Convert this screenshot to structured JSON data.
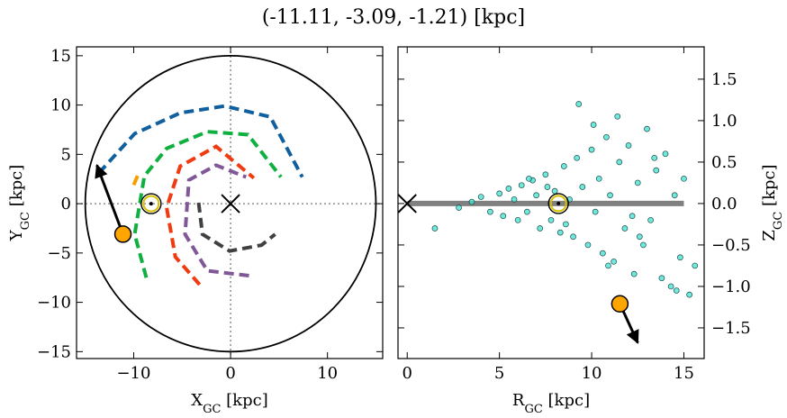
{
  "title": "(-11.11, -3.09, -1.21) [kpc]",
  "chart_data": [
    {
      "type": "line",
      "xlabel": [
        "X",
        "GC",
        " [kpc]"
      ],
      "ylabel": [
        "Y",
        "GC",
        " [kpc]"
      ],
      "xlim": [
        -15.9,
        15.7
      ],
      "ylim": [
        -15.7,
        15.9
      ],
      "xticks": [
        {
          "value": -10,
          "label": "−10"
        },
        0,
        10
      ],
      "yticks": [
        {
          "value": -15,
          "label": "−15"
        },
        {
          "value": -10,
          "label": "−10"
        },
        {
          "value": -5,
          "label": "−5"
        },
        0,
        5,
        10,
        15
      ],
      "circle_radius": 15,
      "series": [
        {
          "color": "#1060a0",
          "x": [
            -13.6,
            -9.9,
            -5.2,
            -0.6,
            4.1,
            7.4
          ],
          "y": [
            3.1,
            7.1,
            9.2,
            9.9,
            8.8,
            2.7
          ]
        },
        {
          "color": "#10b040",
          "x": [
            -8.7,
            -9.9,
            -8.9,
            -6.6,
            -2.4,
            1.8,
            5.2
          ],
          "y": [
            -7.5,
            -3.1,
            2.8,
            5.6,
            7.3,
            7.0,
            2.7
          ]
        },
        {
          "color": "#f5a000",
          "x": [
            -10.0,
            -9.4
          ],
          "y": [
            1.9,
            3.3
          ]
        },
        {
          "color": "#f03a10",
          "x": [
            -3.2,
            -5.7,
            -6.6,
            -5.2,
            -1.5,
            2.4
          ],
          "y": [
            -8.2,
            -5.4,
            -0.4,
            3.8,
            5.8,
            2.6
          ]
        },
        {
          "color": "#805898",
          "x": [
            1.9,
            -2.4,
            -4.7,
            -4.3,
            -1.5,
            1.6
          ],
          "y": [
            -7.3,
            -6.8,
            -3.1,
            2.4,
            3.9,
            2.7
          ]
        },
        {
          "color": "#404040",
          "x": [
            -3.3,
            -2.9,
            -0.1,
            3.2,
            4.6
          ],
          "y": [
            0.1,
            -3.1,
            -4.8,
            -4.2,
            -3.1
          ]
        }
      ],
      "center": {
        "x": 0,
        "y": 0
      },
      "sun": {
        "x": -8.2,
        "y": 0
      },
      "target": {
        "x": -11.11,
        "y": -3.09,
        "color": "#ffa500"
      },
      "arrow": {
        "x": [
          -11.11,
          -13.8
        ],
        "y": [
          -3.09,
          3.9
        ]
      }
    },
    {
      "type": "scatter",
      "xlabel": [
        "R",
        "GC",
        " [kpc]"
      ],
      "ylabel": [
        "Z",
        "GC",
        " [kpc]"
      ],
      "xlim": [
        -0.5,
        16.1
      ],
      "y2lim": [
        -1.87,
        1.89
      ],
      "xticks": [
        0,
        5,
        10,
        15
      ],
      "y2ticks": [
        {
          "value": -1.5,
          "label": "−1.5"
        },
        {
          "value": -1.0,
          "label": "−1.0"
        },
        {
          "value": -0.5,
          "label": "−0.5"
        },
        {
          "value": 0,
          "label": "0.0"
        },
        0.5,
        {
          "value": 1.0,
          "label": "1.0"
        },
        1.5
      ],
      "color": "#40e0d0",
      "x": [
        1.5,
        2.8,
        3.5,
        4.0,
        4.5,
        5.0,
        5.2,
        5.5,
        5.8,
        6.0,
        6.2,
        6.5,
        6.8,
        7.0,
        7.2,
        7.5,
        7.8,
        8.0,
        8.3,
        8.5,
        8.8,
        9.0,
        9.2,
        9.5,
        9.8,
        10.0,
        10.2,
        10.4,
        10.6,
        10.8,
        11.0,
        11.2,
        11.5,
        11.8,
        12.0,
        12.3,
        12.5,
        12.8,
        13.0,
        13.2,
        13.5,
        13.8,
        14.0,
        14.3,
        14.5,
        14.8,
        15.0,
        15.3,
        15.6,
        9.3,
        10.1,
        11.4,
        12.6,
        13.4,
        14.6,
        8.6,
        7.6,
        6.6,
        10.9,
        12.2
      ],
      "y": [
        -0.3,
        -0.05,
        0.02,
        0.08,
        -0.1,
        0.12,
        -0.15,
        0.18,
        0.05,
        -0.2,
        0.22,
        -0.1,
        0.28,
        0.1,
        -0.3,
        0.35,
        -0.2,
        0.15,
        -0.35,
        0.45,
        0.05,
        -0.4,
        0.55,
        0.2,
        -0.5,
        0.65,
        -0.1,
        0.3,
        -0.6,
        0.8,
        0.1,
        -0.7,
        0.5,
        -0.3,
        0.7,
        -0.85,
        0.25,
        -0.5,
        0.9,
        -0.2,
        0.4,
        -0.9,
        0.6,
        -1.0,
        0.1,
        -0.65,
        0.3,
        -1.1,
        -0.75,
        1.2,
        0.95,
        1.05,
        -0.4,
        0.55,
        -1.05,
        -0.25,
        0.2,
        0.3,
        -0.75,
        -0.15
      ],
      "disk": {
        "x": [
          0,
          15
        ],
        "y": [
          0,
          0
        ]
      },
      "center": {
        "x": 0,
        "y": 0
      },
      "sun": {
        "x": 8.2,
        "y": 0
      },
      "target": {
        "x": 11.53,
        "y": -1.21,
        "color": "#ffa500"
      },
      "arrow": {
        "x": [
          11.53,
          12.5
        ],
        "y": [
          -1.21,
          -1.68
        ]
      }
    }
  ]
}
